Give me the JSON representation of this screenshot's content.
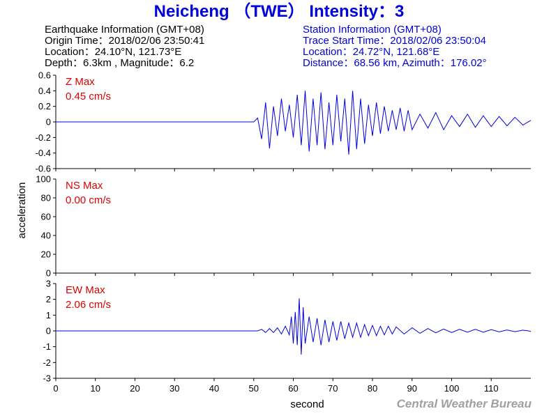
{
  "title": "Neicheng （TWE） Intensity：3",
  "earthquake_info": {
    "heading": "Earthquake Information  (GMT+08)",
    "origin_time": "Origin Time：2018/02/06 23:50:41",
    "location": "Location：24.10°N, 121.73°E",
    "depth_magnitude": "Depth：6.3km , Magnitude：6.2"
  },
  "station_info": {
    "heading": "Station Information  (GMT+08)",
    "trace_start": "Trace Start Time：2018/02/06 23:50:04",
    "location": "Location：24.72°N, 121.68°E",
    "distance_azimuth": "Distance：68.56 km, Azimuth：176.02°"
  },
  "credit": "Central Weather Bureau",
  "colors": {
    "title": "#0000dd",
    "trace": "#0000dd",
    "panel_label": "#dd0000",
    "axis": "#000000",
    "credit": "#a0a0a0"
  },
  "chart_data": {
    "type": "line",
    "xlabel": "second",
    "ylabel": "acceleration",
    "xlim": [
      0,
      120
    ],
    "x_ticks": [
      0,
      10,
      20,
      30,
      40,
      50,
      60,
      70,
      80,
      90,
      100,
      110
    ],
    "panels": [
      {
        "label": "Z Max",
        "max_label": "0.45 cm/s",
        "ylim": [
          -0.6,
          0.6
        ],
        "y_ticks": [
          -0.6,
          -0.4,
          -0.2,
          0,
          0.2,
          0.4,
          0.6
        ],
        "y_tick_labels": [
          "-0.6",
          "-0.4",
          "-0.2",
          "0",
          "0.2",
          "0.4",
          "0.6"
        ],
        "x": [
          0,
          50,
          51,
          52,
          53,
          54,
          55,
          56,
          57,
          58,
          59,
          60,
          61,
          62,
          63,
          64,
          65,
          66,
          67,
          68,
          69,
          70,
          71,
          72,
          73,
          74,
          75,
          76,
          77,
          78,
          79,
          80,
          81,
          82,
          83,
          84,
          85,
          86,
          87,
          88,
          89,
          90,
          92,
          94,
          96,
          98,
          100,
          102,
          104,
          106,
          108,
          110,
          112,
          114,
          116,
          118,
          120
        ],
        "y": [
          0,
          0,
          0.05,
          -0.22,
          0.25,
          -0.34,
          0.2,
          -0.18,
          0.3,
          -0.12,
          0.22,
          -0.2,
          0.35,
          -0.3,
          0.4,
          -0.38,
          0.3,
          -0.3,
          0.38,
          -0.35,
          0.25,
          -0.3,
          0.35,
          -0.25,
          0.3,
          -0.42,
          0.4,
          -0.35,
          0.3,
          -0.28,
          0.22,
          -0.18,
          0.25,
          -0.15,
          0.2,
          -0.12,
          0.15,
          -0.1,
          0.18,
          -0.12,
          0.15,
          -0.1,
          0.1,
          -0.08,
          0.12,
          -0.1,
          0.08,
          -0.06,
          0.1,
          -0.07,
          0.08,
          -0.06,
          0.07,
          -0.05,
          0.06,
          -0.04,
          0.02
        ]
      },
      {
        "label": "NS Max",
        "max_label": "0.00 cm/s",
        "ylim": [
          0,
          100
        ],
        "y_ticks": [
          0,
          20,
          40,
          60,
          80,
          100
        ],
        "y_tick_labels": [
          "0",
          "20",
          "40",
          "60",
          "80",
          "100"
        ],
        "x": [],
        "y": []
      },
      {
        "label": "EW Max",
        "max_label": "2.06 cm/s",
        "ylim": [
          -3,
          3
        ],
        "y_ticks": [
          -3,
          -2,
          -1,
          0,
          1,
          2,
          3
        ],
        "y_tick_labels": [
          "-3",
          "-2",
          "-1",
          "0",
          "1",
          "2",
          "3"
        ],
        "x": [
          0,
          51,
          52,
          53,
          54,
          55,
          56,
          57,
          58,
          59,
          59.5,
          60,
          60.5,
          61,
          61.5,
          62,
          62.5,
          63,
          64,
          65,
          66,
          67,
          68,
          69,
          70,
          71,
          72,
          73,
          74,
          75,
          76,
          77,
          78,
          79,
          80,
          81,
          82,
          83,
          84,
          85,
          86,
          88,
          90,
          92,
          94,
          96,
          98,
          100,
          102,
          104,
          106,
          108,
          110,
          112,
          114,
          116,
          118,
          120
        ],
        "y": [
          0,
          0,
          0.1,
          -0.1,
          0.15,
          -0.1,
          0.2,
          -0.2,
          0.3,
          -0.25,
          0.9,
          -0.8,
          1.2,
          -0.9,
          2.06,
          -1.5,
          1.5,
          -0.8,
          0.9,
          -0.7,
          0.8,
          -0.9,
          0.7,
          -0.7,
          0.6,
          -0.6,
          0.6,
          -0.5,
          0.5,
          -0.4,
          0.5,
          -0.4,
          0.4,
          -0.3,
          0.35,
          -0.3,
          0.3,
          -0.25,
          0.3,
          -0.2,
          0.25,
          -0.2,
          0.2,
          -0.15,
          0.15,
          -0.12,
          0.12,
          -0.1,
          0.1,
          -0.08,
          0.1,
          -0.08,
          0.08,
          -0.06,
          0.06,
          -0.05,
          0.05,
          -0.02
        ]
      }
    ]
  }
}
